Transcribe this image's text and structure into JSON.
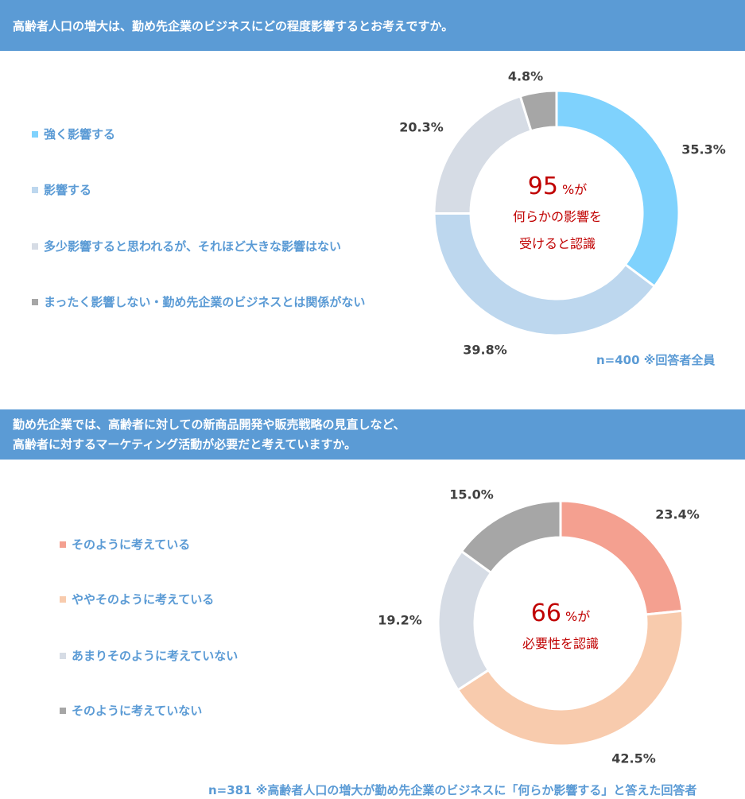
{
  "charts": [
    {
      "question": "高齢者人口の増大は、勤め先企業のビジネスにどの程度影響するとお考えですか。",
      "center_number": "95",
      "center_unit": "%が",
      "center_line2": "何らかの影響を",
      "center_line3": "受けると認識",
      "note": "n=400 ※回答者全員"
    },
    {
      "question_line1": "勤め先企業では、高齢者に対しての新商品開発や販売戦略の見直しなど、",
      "question_line2": "高齢者に対するマーケティング活動が必要だと考えていますか。",
      "center_number": "66",
      "center_unit": "%が",
      "center_line2": "必要性を認識",
      "note": "n=381 ※高齢者人口の増大が勤め先企業のビジネスに「何らか影響する」と答えた回答者"
    }
  ],
  "chart_data": [
    {
      "type": "pie",
      "title": "高齢者人口の増大は、勤め先企業のビジネスにどの程度影響するとお考えですか。",
      "categories": [
        "強く影響する",
        "影響する",
        "多少影響すると思われるが、それほど大きな影響はない",
        "まったく影響しない・勤め先企業のビジネスとは関係がない"
      ],
      "values": [
        35.3,
        39.8,
        20.3,
        4.8
      ],
      "labels": [
        "35.3%",
        "39.8%",
        "20.3%",
        "4.8%"
      ],
      "colors": [
        "#7fd2fd",
        "#bdd7ee",
        "#d6dce5",
        "#a6a6a6"
      ],
      "legend": "left"
    },
    {
      "type": "pie",
      "title": "勤め先企業では、高齢者に対しての新商品開発や販売戦略の見直しなど、高齢者に対するマーケティング活動が必要だと考えていますか。",
      "categories": [
        "そのように考えている",
        "ややそのように考えている",
        "あまりそのように考えていない",
        "そのように考えていない"
      ],
      "values": [
        23.4,
        42.5,
        19.2,
        15.0
      ],
      "labels": [
        "23.4%",
        "42.5%",
        "19.2%",
        "15.0%"
      ],
      "colors": [
        "#f4a090",
        "#f8cbad",
        "#d6dce5",
        "#a6a6a6"
      ],
      "legend": "left"
    }
  ]
}
